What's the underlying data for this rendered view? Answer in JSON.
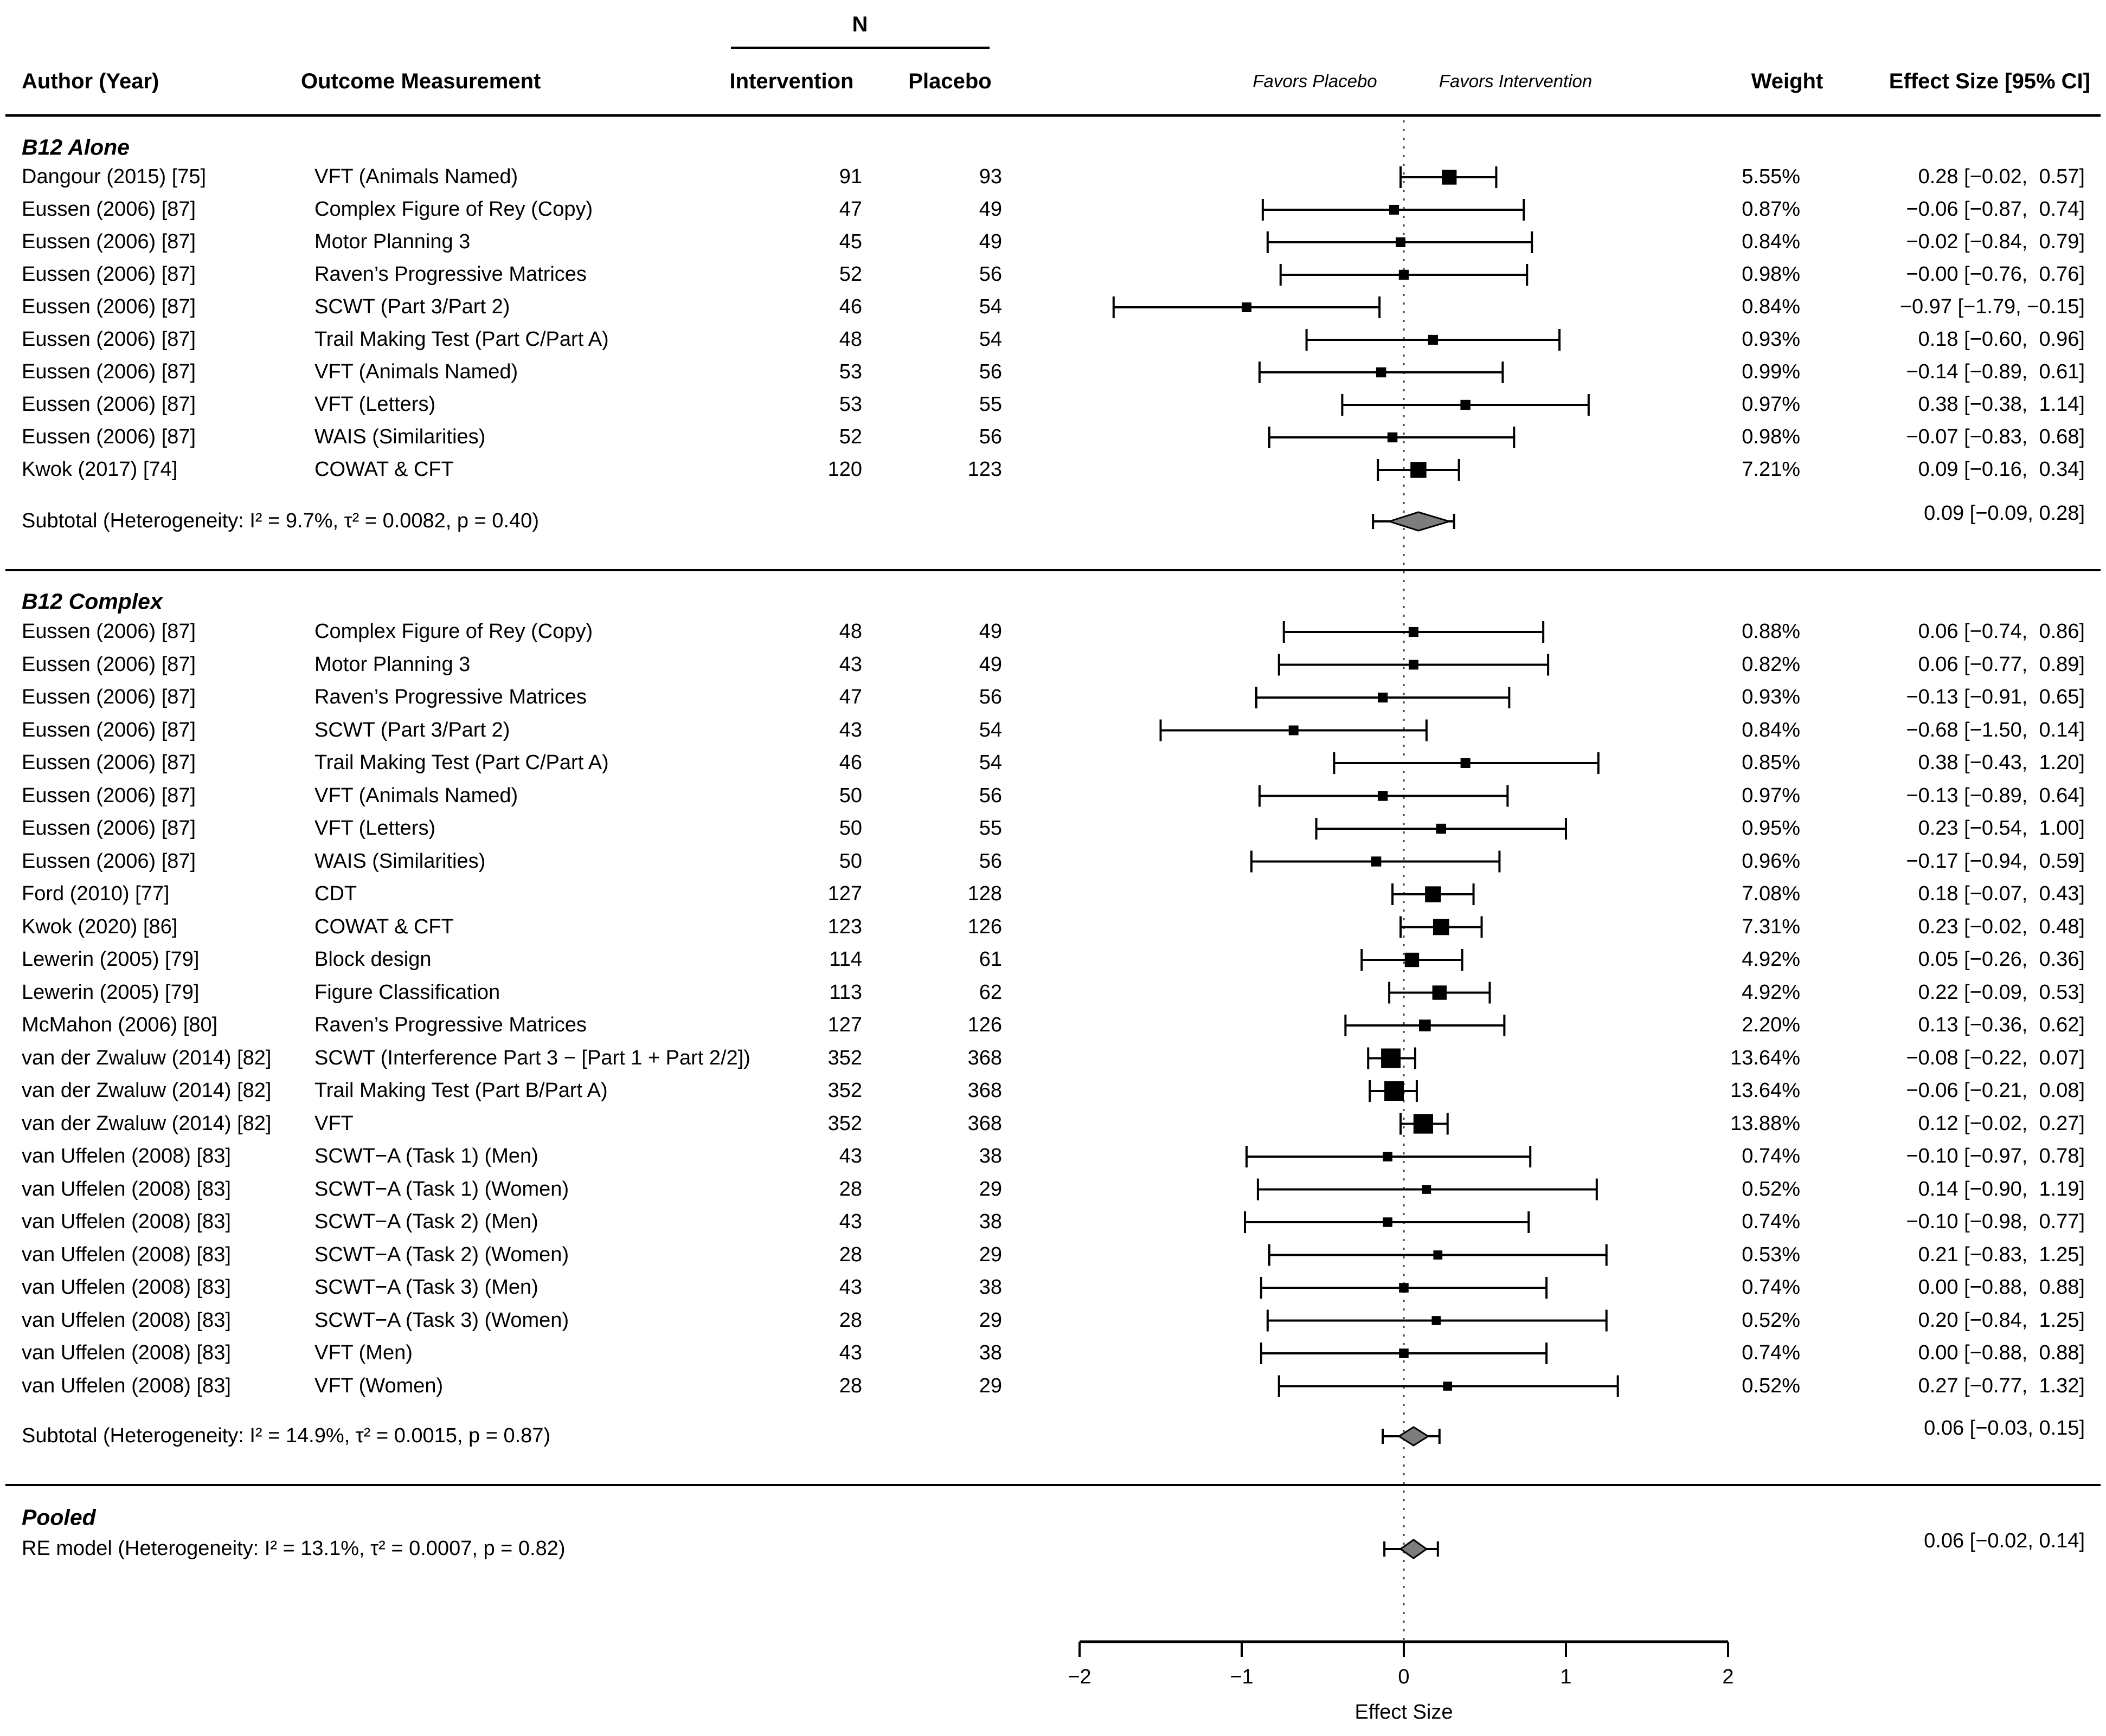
{
  "chart_data": {
    "type": "forest",
    "header": {
      "n_label": "N",
      "author": "Author (Year)",
      "outcome": "Outcome Measurement",
      "intervention": "Intervention",
      "placebo": "Placebo",
      "favors_placebo": "Favors Placebo",
      "favors_intervention": "Favors Intervention",
      "weight": "Weight",
      "effect": "Effect Size [95% CI]"
    },
    "axis": {
      "xlabel": "Effect Size",
      "ticks": [
        -2,
        -1,
        0,
        1,
        2
      ],
      "tick_labels": [
        "−2",
        "−1",
        "0",
        "1",
        "2"
      ],
      "xlim": [
        -2,
        2
      ]
    },
    "sections": [
      {
        "title": "B12 Alone",
        "rows": [
          {
            "author": "Dangour (2015) [75]",
            "outcome": "VFT (Animals Named)",
            "n_intervention": 91,
            "n_placebo": 93,
            "weight": "5.55%",
            "est": 0.28,
            "lo": -0.02,
            "hi": 0.57,
            "effect_label": "0.28 [−0.02,  0.57]"
          },
          {
            "author": "Eussen (2006) [87]",
            "outcome": "Complex Figure of Rey (Copy)",
            "n_intervention": 47,
            "n_placebo": 49,
            "weight": "0.87%",
            "est": -0.06,
            "lo": -0.87,
            "hi": 0.74,
            "effect_label": "−0.06 [−0.87,  0.74]"
          },
          {
            "author": "Eussen (2006) [87]",
            "outcome": "Motor Planning 3",
            "n_intervention": 45,
            "n_placebo": 49,
            "weight": "0.84%",
            "est": -0.02,
            "lo": -0.84,
            "hi": 0.79,
            "effect_label": "−0.02 [−0.84,  0.79]"
          },
          {
            "author": "Eussen (2006) [87]",
            "outcome": "Raven’s Progressive Matrices",
            "n_intervention": 52,
            "n_placebo": 56,
            "weight": "0.98%",
            "est": 0.0,
            "lo": -0.76,
            "hi": 0.76,
            "effect_label": "−0.00 [−0.76,  0.76]"
          },
          {
            "author": "Eussen (2006) [87]",
            "outcome": "SCWT (Part 3/Part 2)",
            "n_intervention": 46,
            "n_placebo": 54,
            "weight": "0.84%",
            "est": -0.97,
            "lo": -1.79,
            "hi": -0.15,
            "effect_label": "−0.97 [−1.79, −0.15]"
          },
          {
            "author": "Eussen (2006) [87]",
            "outcome": "Trail Making Test (Part C/Part A)",
            "n_intervention": 48,
            "n_placebo": 54,
            "weight": "0.93%",
            "est": 0.18,
            "lo": -0.6,
            "hi": 0.96,
            "effect_label": "0.18 [−0.60,  0.96]"
          },
          {
            "author": "Eussen (2006) [87]",
            "outcome": "VFT (Animals Named)",
            "n_intervention": 53,
            "n_placebo": 56,
            "weight": "0.99%",
            "est": -0.14,
            "lo": -0.89,
            "hi": 0.61,
            "effect_label": "−0.14 [−0.89,  0.61]"
          },
          {
            "author": "Eussen (2006) [87]",
            "outcome": "VFT (Letters)",
            "n_intervention": 53,
            "n_placebo": 55,
            "weight": "0.97%",
            "est": 0.38,
            "lo": -0.38,
            "hi": 1.14,
            "effect_label": "0.38 [−0.38,  1.14]"
          },
          {
            "author": "Eussen (2006) [87]",
            "outcome": "WAIS (Similarities)",
            "n_intervention": 52,
            "n_placebo": 56,
            "weight": "0.98%",
            "est": -0.07,
            "lo": -0.83,
            "hi": 0.68,
            "effect_label": "−0.07 [−0.83,  0.68]"
          },
          {
            "author": "Kwok (2017) [74]",
            "outcome": "COWAT & CFT",
            "n_intervention": 120,
            "n_placebo": 123,
            "weight": "7.21%",
            "est": 0.09,
            "lo": -0.16,
            "hi": 0.34,
            "effect_label": "0.09 [−0.16,  0.34]"
          }
        ],
        "subtotal": {
          "label": "Subtotal (Heterogeneity: I² = 9.7%, τ² = 0.0082, p = 0.40)",
          "effect_label": "0.09 [−0.09, 0.28]",
          "est": 0.09,
          "lo": -0.09,
          "hi": 0.28,
          "whisker_lo": -0.19,
          "whisker_hi": 0.31
        }
      },
      {
        "title": "B12 Complex",
        "rows": [
          {
            "author": "Eussen (2006) [87]",
            "outcome": "Complex Figure of Rey (Copy)",
            "n_intervention": 48,
            "n_placebo": 49,
            "weight": "0.88%",
            "est": 0.06,
            "lo": -0.74,
            "hi": 0.86,
            "effect_label": "0.06 [−0.74,  0.86]"
          },
          {
            "author": "Eussen (2006) [87]",
            "outcome": "Motor Planning 3",
            "n_intervention": 43,
            "n_placebo": 49,
            "weight": "0.82%",
            "est": 0.06,
            "lo": -0.77,
            "hi": 0.89,
            "effect_label": "0.06 [−0.77,  0.89]"
          },
          {
            "author": "Eussen (2006) [87]",
            "outcome": "Raven’s Progressive Matrices",
            "n_intervention": 47,
            "n_placebo": 56,
            "weight": "0.93%",
            "est": -0.13,
            "lo": -0.91,
            "hi": 0.65,
            "effect_label": "−0.13 [−0.91,  0.65]"
          },
          {
            "author": "Eussen (2006) [87]",
            "outcome": "SCWT (Part 3/Part 2)",
            "n_intervention": 43,
            "n_placebo": 54,
            "weight": "0.84%",
            "est": -0.68,
            "lo": -1.5,
            "hi": 0.14,
            "effect_label": "−0.68 [−1.50,  0.14]"
          },
          {
            "author": "Eussen (2006) [87]",
            "outcome": "Trail Making Test (Part C/Part A)",
            "n_intervention": 46,
            "n_placebo": 54,
            "weight": "0.85%",
            "est": 0.38,
            "lo": -0.43,
            "hi": 1.2,
            "effect_label": "0.38 [−0.43,  1.20]"
          },
          {
            "author": "Eussen (2006) [87]",
            "outcome": "VFT (Animals Named)",
            "n_intervention": 50,
            "n_placebo": 56,
            "weight": "0.97%",
            "est": -0.13,
            "lo": -0.89,
            "hi": 0.64,
            "effect_label": "−0.13 [−0.89,  0.64]"
          },
          {
            "author": "Eussen (2006) [87]",
            "outcome": "VFT (Letters)",
            "n_intervention": 50,
            "n_placebo": 55,
            "weight": "0.95%",
            "est": 0.23,
            "lo": -0.54,
            "hi": 1.0,
            "effect_label": "0.23 [−0.54,  1.00]"
          },
          {
            "author": "Eussen (2006) [87]",
            "outcome": "WAIS (Similarities)",
            "n_intervention": 50,
            "n_placebo": 56,
            "weight": "0.96%",
            "est": -0.17,
            "lo": -0.94,
            "hi": 0.59,
            "effect_label": "−0.17 [−0.94,  0.59]"
          },
          {
            "author": "Ford (2010) [77]",
            "outcome": "CDT",
            "n_intervention": 127,
            "n_placebo": 128,
            "weight": "7.08%",
            "est": 0.18,
            "lo": -0.07,
            "hi": 0.43,
            "effect_label": "0.18 [−0.07,  0.43]"
          },
          {
            "author": "Kwok (2020) [86]",
            "outcome": "COWAT & CFT",
            "n_intervention": 123,
            "n_placebo": 126,
            "weight": "7.31%",
            "est": 0.23,
            "lo": -0.02,
            "hi": 0.48,
            "effect_label": "0.23 [−0.02,  0.48]"
          },
          {
            "author": "Lewerin (2005) [79]",
            "outcome": "Block design",
            "n_intervention": 114,
            "n_placebo": 61,
            "weight": "4.92%",
            "est": 0.05,
            "lo": -0.26,
            "hi": 0.36,
            "effect_label": "0.05 [−0.26,  0.36]"
          },
          {
            "author": "Lewerin (2005) [79]",
            "outcome": "Figure Classification",
            "n_intervention": 113,
            "n_placebo": 62,
            "weight": "4.92%",
            "est": 0.22,
            "lo": -0.09,
            "hi": 0.53,
            "effect_label": "0.22 [−0.09,  0.53]"
          },
          {
            "author": "McMahon (2006) [80]",
            "outcome": "Raven’s Progressive Matrices",
            "n_intervention": 127,
            "n_placebo": 126,
            "weight": "2.20%",
            "est": 0.13,
            "lo": -0.36,
            "hi": 0.62,
            "effect_label": "0.13 [−0.36,  0.62]"
          },
          {
            "author": "van der Zwaluw (2014) [82]",
            "outcome": "SCWT (Interference Part 3 − [Part 1 + Part 2/2])",
            "n_intervention": 352,
            "n_placebo": 368,
            "weight": "13.64%",
            "est": -0.08,
            "lo": -0.22,
            "hi": 0.07,
            "effect_label": "−0.08 [−0.22,  0.07]"
          },
          {
            "author": "van der Zwaluw (2014) [82]",
            "outcome": "Trail Making Test (Part B/Part A)",
            "n_intervention": 352,
            "n_placebo": 368,
            "weight": "13.64%",
            "est": -0.06,
            "lo": -0.21,
            "hi": 0.08,
            "effect_label": "−0.06 [−0.21,  0.08]"
          },
          {
            "author": "van der Zwaluw (2014) [82]",
            "outcome": "VFT",
            "n_intervention": 352,
            "n_placebo": 368,
            "weight": "13.88%",
            "est": 0.12,
            "lo": -0.02,
            "hi": 0.27,
            "effect_label": "0.12 [−0.02,  0.27]"
          },
          {
            "author": "van Uffelen (2008) [83]",
            "outcome": "SCWT−A (Task 1) (Men)",
            "n_intervention": 43,
            "n_placebo": 38,
            "weight": "0.74%",
            "est": -0.1,
            "lo": -0.97,
            "hi": 0.78,
            "effect_label": "−0.10 [−0.97,  0.78]"
          },
          {
            "author": "van Uffelen (2008) [83]",
            "outcome": "SCWT−A (Task 1) (Women)",
            "n_intervention": 28,
            "n_placebo": 29,
            "weight": "0.52%",
            "est": 0.14,
            "lo": -0.9,
            "hi": 1.19,
            "effect_label": "0.14 [−0.90,  1.19]"
          },
          {
            "author": "van Uffelen (2008) [83]",
            "outcome": "SCWT−A (Task 2) (Men)",
            "n_intervention": 43,
            "n_placebo": 38,
            "weight": "0.74%",
            "est": -0.1,
            "lo": -0.98,
            "hi": 0.77,
            "effect_label": "−0.10 [−0.98,  0.77]"
          },
          {
            "author": "van Uffelen (2008) [83]",
            "outcome": "SCWT−A (Task 2) (Women)",
            "n_intervention": 28,
            "n_placebo": 29,
            "weight": "0.53%",
            "est": 0.21,
            "lo": -0.83,
            "hi": 1.25,
            "effect_label": "0.21 [−0.83,  1.25]"
          },
          {
            "author": "van Uffelen (2008) [83]",
            "outcome": "SCWT−A (Task 3) (Men)",
            "n_intervention": 43,
            "n_placebo": 38,
            "weight": "0.74%",
            "est": 0.0,
            "lo": -0.88,
            "hi": 0.88,
            "effect_label": "0.00 [−0.88,  0.88]"
          },
          {
            "author": "van Uffelen (2008) [83]",
            "outcome": "SCWT−A (Task 3) (Women)",
            "n_intervention": 28,
            "n_placebo": 29,
            "weight": "0.52%",
            "est": 0.2,
            "lo": -0.84,
            "hi": 1.25,
            "effect_label": "0.20 [−0.84,  1.25]"
          },
          {
            "author": "van Uffelen (2008) [83]",
            "outcome": "VFT (Men)",
            "n_intervention": 43,
            "n_placebo": 38,
            "weight": "0.74%",
            "est": 0.0,
            "lo": -0.88,
            "hi": 0.88,
            "effect_label": "0.00 [−0.88,  0.88]"
          },
          {
            "author": "van Uffelen (2008) [83]",
            "outcome": "VFT (Women)",
            "n_intervention": 28,
            "n_placebo": 29,
            "weight": "0.52%",
            "est": 0.27,
            "lo": -0.77,
            "hi": 1.32,
            "effect_label": "0.27 [−0.77,  1.32]"
          }
        ],
        "subtotal": {
          "label": "Subtotal (Heterogeneity: I² = 14.9%, τ² = 0.0015, p = 0.87)",
          "effect_label": "0.06 [−0.03, 0.15]",
          "est": 0.06,
          "lo": -0.03,
          "hi": 0.15,
          "whisker_lo": -0.13,
          "whisker_hi": 0.22
        }
      }
    ],
    "pooled": {
      "title": "Pooled",
      "label": "RE model (Heterogeneity: I² = 13.1%, τ² = 0.0007, p = 0.82)",
      "effect_label": "0.06 [−0.02, 0.14]",
      "est": 0.06,
      "lo": -0.02,
      "hi": 0.14,
      "whisker_lo": -0.12,
      "whisker_hi": 0.21
    },
    "colors": {
      "marker": "#000000",
      "diamond_fill": "#7d7d7d",
      "line": "#000000",
      "zero_line": "#444444"
    }
  }
}
